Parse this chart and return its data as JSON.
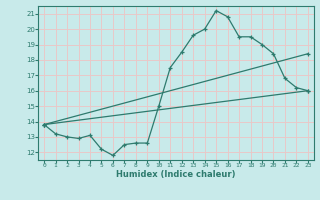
{
  "xlabel": "Humidex (Indice chaleur)",
  "bg_color": "#c8eaea",
  "grid_color": "#e8c8c8",
  "line_color": "#2e7b6e",
  "xlim": [
    -0.5,
    23.5
  ],
  "ylim": [
    11.5,
    21.5
  ],
  "xticks": [
    0,
    1,
    2,
    3,
    4,
    5,
    6,
    7,
    8,
    9,
    10,
    11,
    12,
    13,
    14,
    15,
    16,
    17,
    18,
    19,
    20,
    21,
    22,
    23
  ],
  "yticks": [
    12,
    13,
    14,
    15,
    16,
    17,
    18,
    19,
    20,
    21
  ],
  "line1_x": [
    0,
    1,
    2,
    3,
    4,
    5,
    6,
    7,
    8,
    9,
    10,
    11,
    12,
    13,
    14,
    15,
    16,
    17,
    18,
    19,
    20,
    21,
    22,
    23
  ],
  "line1_y": [
    13.8,
    13.2,
    13.0,
    12.9,
    13.1,
    12.2,
    11.8,
    12.5,
    12.6,
    12.6,
    15.0,
    17.5,
    18.5,
    19.6,
    20.0,
    21.2,
    20.8,
    19.5,
    19.5,
    19.0,
    18.4,
    16.8,
    16.2,
    16.0
  ],
  "line2_x": [
    0,
    23
  ],
  "line2_y": [
    13.8,
    16.0
  ],
  "line3_x": [
    0,
    23
  ],
  "line3_y": [
    13.8,
    18.4
  ]
}
